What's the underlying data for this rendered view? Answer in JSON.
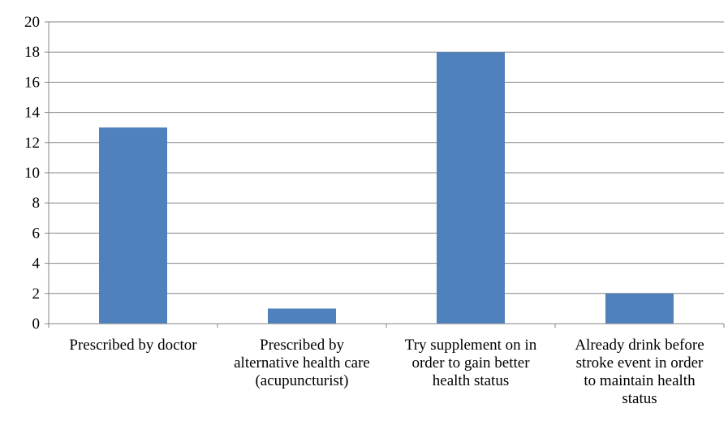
{
  "chart_data": {
    "type": "bar",
    "title": "",
    "xlabel": "",
    "ylabel": "",
    "categories": [
      [
        "Prescribed by doctor"
      ],
      [
        "Prescribed by",
        "alternative health care",
        "(acupuncturist)"
      ],
      [
        "Try supplement on in",
        "order to gain better",
        "health status"
      ],
      [
        "Already drink before",
        "stroke event in order",
        "to maintain health",
        "status"
      ]
    ],
    "values": [
      13,
      1,
      18,
      2
    ],
    "ylim": [
      0,
      20
    ],
    "yticks": [
      0,
      2,
      4,
      6,
      8,
      10,
      12,
      14,
      16,
      18,
      20
    ],
    "grid": true,
    "legend": "none",
    "colors": {
      "bar": "#4F81BD",
      "grid": "#868686",
      "axis": "#868686"
    }
  }
}
